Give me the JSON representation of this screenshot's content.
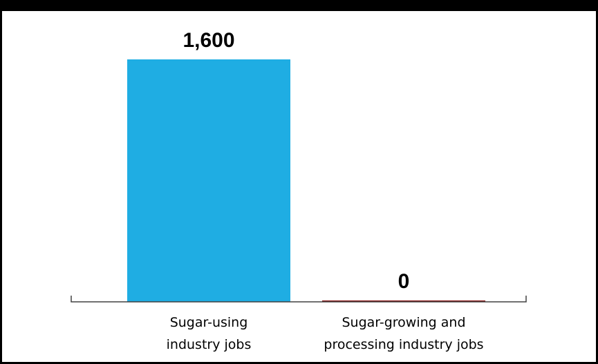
{
  "chart_data": {
    "type": "bar",
    "categories": [
      [
        "Sugar-using",
        "industry jobs"
      ],
      [
        "Sugar-growing and",
        "processing industry jobs"
      ]
    ],
    "values": [
      1600,
      0
    ],
    "value_labels": [
      "1,600",
      "0"
    ],
    "bar_colors": [
      "#1fade3",
      "#8b1a1a"
    ],
    "ylim": [
      0,
      1600
    ],
    "grid": false,
    "legend": "none"
  }
}
